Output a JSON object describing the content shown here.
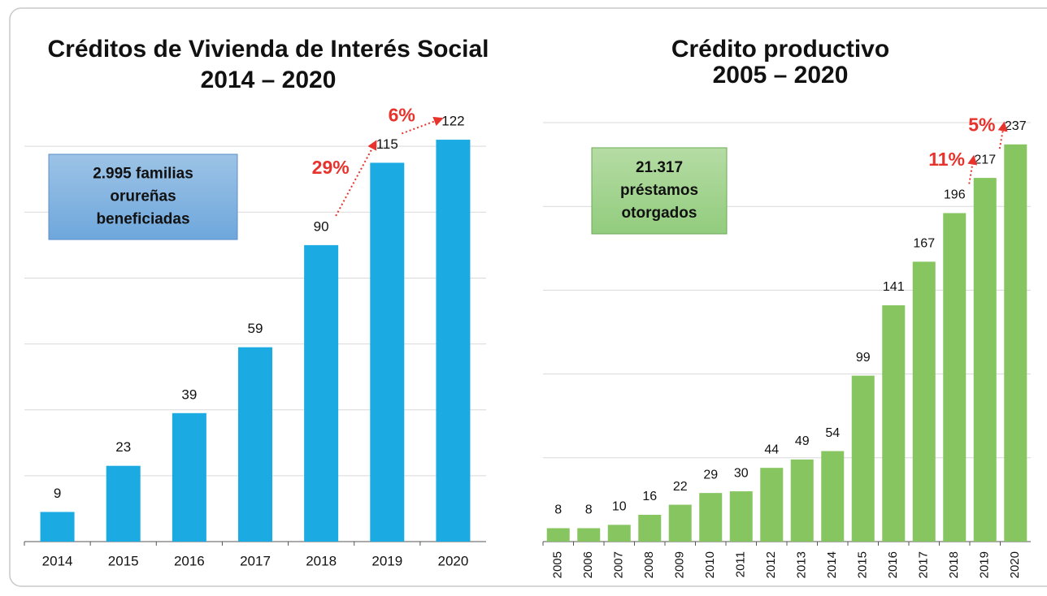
{
  "chart_data": [
    {
      "type": "bar",
      "title": [
        "Créditos de Vivienda de Interés Social",
        "2014 – 2020"
      ],
      "categories": [
        "2014",
        "2015",
        "2016",
        "2017",
        "2018",
        "2019",
        "2020"
      ],
      "values": [
        9,
        23,
        39,
        59,
        90,
        115,
        122
      ],
      "color": "#1babe2",
      "ylim": [
        0,
        130
      ],
      "yticks": [
        0,
        20,
        40,
        60,
        80,
        100,
        120
      ],
      "grid": true,
      "note": [
        "2.995 familias",
        "orureñas",
        "beneficiadas"
      ],
      "annotations": [
        "29%",
        "6%"
      ]
    },
    {
      "type": "bar",
      "title": [
        "Crédito productivo",
        "2005 – 2020"
      ],
      "categories": [
        "2005",
        "2006",
        "2007",
        "2008",
        "2009",
        "2010",
        "2011",
        "2012",
        "2013",
        "2014",
        "2015",
        "2016",
        "2017",
        "2018",
        "2019",
        "2020"
      ],
      "values": [
        8,
        8,
        10,
        16,
        22,
        29,
        30,
        44,
        49,
        54,
        99,
        141,
        167,
        196,
        217,
        237
      ],
      "color": "#86c55f",
      "ylim": [
        0,
        250
      ],
      "yticks": [
        0,
        50,
        100,
        150,
        200,
        250
      ],
      "grid": true,
      "note": [
        "21.317",
        "préstamos",
        "otorgados"
      ],
      "annotations": [
        "11%",
        "5%"
      ]
    }
  ]
}
